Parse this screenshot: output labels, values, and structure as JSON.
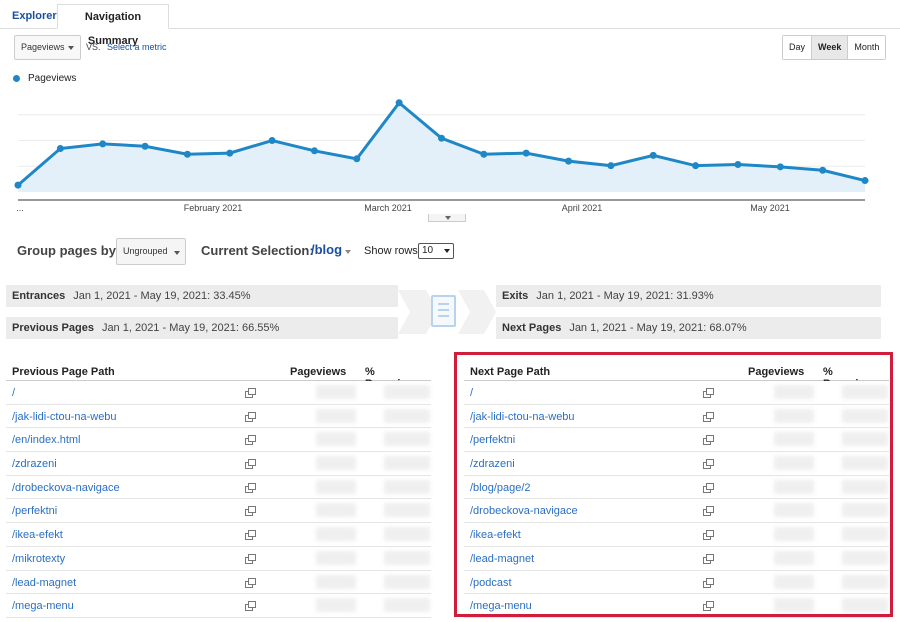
{
  "tabs": {
    "explorer": "Explorer",
    "active": "Navigation Summary"
  },
  "controls": {
    "metric": "Pageviews",
    "vs": "VS.",
    "select_metric": "Select a metric",
    "granularity": [
      "Day",
      "Week",
      "Month"
    ],
    "selected_granularity": "Week"
  },
  "legend": {
    "series": "Pageviews",
    "color": "#1f87c5"
  },
  "chart_data": {
    "type": "area",
    "series": [
      {
        "name": "Pageviews",
        "values": [
          6,
          38,
          42,
          40,
          33,
          34,
          45,
          36,
          29,
          78,
          47,
          33,
          34,
          27,
          23,
          32,
          23,
          24,
          22,
          19,
          10
        ]
      }
    ],
    "x_tick_labels": [
      "...",
      "February 2021",
      "March 2021",
      "April 2021",
      "May 2021"
    ],
    "ylim": [
      0,
      90
    ],
    "grid": true,
    "color": "#1f87c5"
  },
  "group": {
    "label": "Group pages by:",
    "value": "Ungrouped",
    "current_label": "Current Selection:",
    "current_value": "/blog",
    "rows_label": "Show rows:",
    "rows_value": "10"
  },
  "summary": {
    "entrances_label": "Entrances",
    "entrances_value": "Jan 1, 2021 - May 19, 2021: 33.45%",
    "prev_label": "Previous Pages",
    "prev_value": "Jan 1, 2021 - May 19, 2021: 66.55%",
    "exits_label": "Exits",
    "exits_value": "Jan 1, 2021 - May 19, 2021: 31.93%",
    "next_label": "Next Pages",
    "next_value": "Jan 1, 2021 - May 19, 2021: 68.07%"
  },
  "prev_table": {
    "col_path": "Previous Page Path",
    "col_pv": "Pageviews",
    "col_pct": "% Pageviews",
    "rows": [
      "/",
      "/jak-lidi-ctou-na-webu",
      "/en/index.html",
      "/zdrazeni",
      "/drobeckova-navigace",
      "/perfektni",
      "/ikea-efekt",
      "/mikrotexty",
      "/lead-magnet",
      "/mega-menu"
    ]
  },
  "next_table": {
    "col_path": "Next Page Path",
    "col_pv": "Pageviews",
    "col_pct": "% Pageviews",
    "rows": [
      "/",
      "/jak-lidi-ctou-na-webu",
      "/perfektni",
      "/zdrazeni",
      "/blog/page/2",
      "/drobeckova-navigace",
      "/ikea-efekt",
      "/lead-magnet",
      "/podcast",
      "/mega-menu"
    ]
  }
}
